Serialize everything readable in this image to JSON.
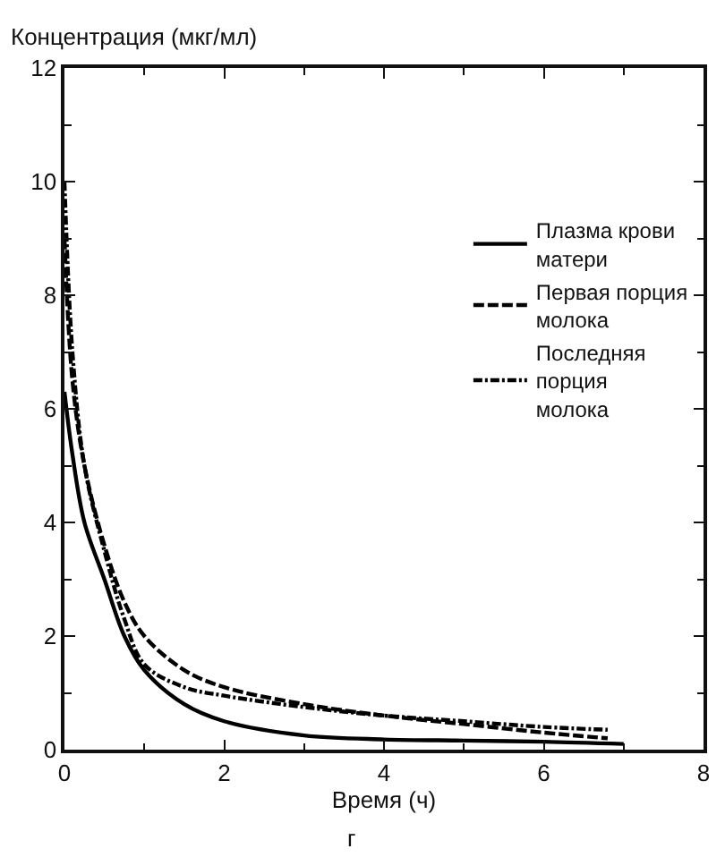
{
  "chart_data": {
    "type": "line",
    "ylabel": "Концентрация (мкг/мл)",
    "xlabel": "Время (ч)",
    "annotations": [
      "г"
    ],
    "xlim": [
      0,
      8
    ],
    "xticks": [
      0,
      2,
      4,
      6,
      8
    ],
    "ylim": [
      0,
      12
    ],
    "yticks": [
      0,
      2,
      4,
      6,
      8,
      10,
      12
    ],
    "legend": "top right",
    "marker": "none",
    "series": [
      {
        "name": "Плазма крови\nматери",
        "color": "#000000",
        "line_style": "solid",
        "x": [
          0,
          0.1,
          0.25,
          0.5,
          0.75,
          1,
          1.5,
          2,
          3,
          4,
          5,
          6,
          7
        ],
        "values": [
          6.3,
          5.2,
          4.0,
          3.0,
          2.0,
          1.4,
          0.8,
          0.5,
          0.25,
          0.18,
          0.16,
          0.14,
          0.1
        ]
      },
      {
        "name": "Первая порция\nмолока",
        "color": "#000000",
        "line_style": "dashed",
        "x": [
          0,
          0.1,
          0.25,
          0.5,
          0.75,
          1,
          1.5,
          2,
          3,
          4,
          5,
          6,
          6.8
        ],
        "values": [
          9.0,
          6.5,
          5.0,
          3.6,
          2.6,
          2.0,
          1.4,
          1.1,
          0.8,
          0.6,
          0.45,
          0.3,
          0.2
        ]
      },
      {
        "name": "Последняя\nпорция\nмолока",
        "color": "#000000",
        "line_style": "dotted",
        "x": [
          0,
          0.1,
          0.25,
          0.5,
          0.75,
          1,
          1.5,
          2,
          3,
          4,
          5,
          6,
          6.8
        ],
        "values": [
          10.0,
          7.0,
          5.0,
          3.5,
          2.3,
          1.5,
          1.1,
          0.95,
          0.75,
          0.6,
          0.5,
          0.4,
          0.35
        ]
      }
    ]
  }
}
